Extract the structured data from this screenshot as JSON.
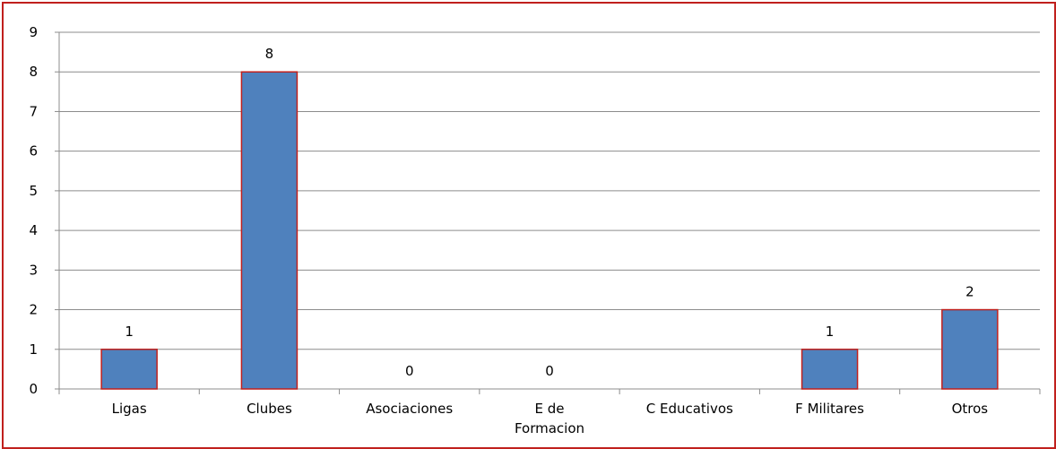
{
  "chart_data": {
    "type": "bar",
    "categories": [
      [
        "Ligas"
      ],
      [
        "Clubes"
      ],
      [
        "Asociaciones"
      ],
      [
        "E de",
        "Formacion"
      ],
      [
        "C Educativos"
      ],
      [
        "F Militares"
      ],
      [
        "Otros"
      ]
    ],
    "values": [
      1,
      8,
      0,
      0,
      null,
      1,
      2
    ],
    "data_labels": [
      "1",
      "8",
      "0",
      "0",
      "",
      "1",
      "2"
    ],
    "title": "",
    "xlabel": "",
    "ylabel": "",
    "ylim": [
      0,
      9
    ],
    "yticks": [
      "0",
      "1",
      "2",
      "3",
      "4",
      "5",
      "6",
      "7",
      "8",
      "9"
    ],
    "grid": "horizontal",
    "legend": "none",
    "colors": {
      "bar_fill": "#4f81bd",
      "bar_stroke": "#c0201d",
      "gridline": "#8c8c8c",
      "axis": "#8c8c8c",
      "frame": "#c0201d"
    }
  }
}
